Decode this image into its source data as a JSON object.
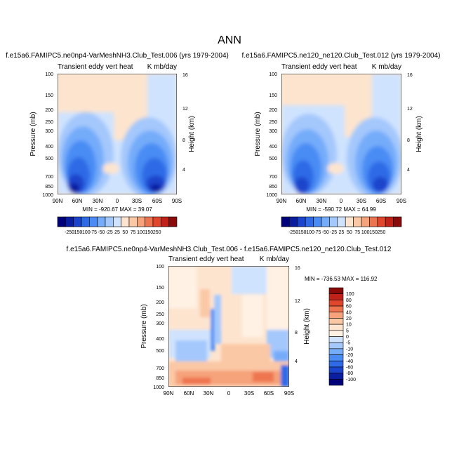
{
  "figure": {
    "title": "ANN"
  },
  "colors": {
    "scale_a": [
      "#00007a",
      "#0a1ea0",
      "#1a44cc",
      "#2e6ae6",
      "#4a8cf4",
      "#74acfa",
      "#a4c8fc",
      "#cfe3fe",
      "#fde4cf",
      "#fbc8a6",
      "#f6a27a",
      "#ee7450",
      "#e0462c",
      "#c0221a",
      "#8a0a0a"
    ],
    "scale_b": [
      "#00007a",
      "#0a1ea0",
      "#1a44cc",
      "#2e6ae6",
      "#4a8cf4",
      "#74acfa",
      "#a4c8fc",
      "#cfe3fe",
      "#fff1e4",
      "#fde4cf",
      "#fbc8a6",
      "#f6a27a",
      "#ee7450",
      "#e0462c",
      "#c0221a",
      "#8a0a0a"
    ]
  },
  "chart_data": [
    {
      "type": "heatmap",
      "title": "f.e15a6.FAMIPC5.ne0np4-VarMeshNH3.Club_Test.006 (yrs 1979-2004)",
      "subtitle_left": "Transient eddy vert heat",
      "subtitle_right": "K mb/day",
      "ylabel": "Pressure (mb)",
      "ylabel_right": "Height (km)",
      "x_ticks": [
        "90N",
        "60N",
        "30N",
        "0",
        "30S",
        "60S",
        "90S"
      ],
      "y_ticks": [
        "100",
        "150",
        "200",
        "250",
        "300",
        "400",
        "500",
        "700",
        "850",
        "1000"
      ],
      "y_right_ticks": [
        "16",
        "12",
        "8",
        "4"
      ],
      "min_max_text": "MIN = -920.67   MAX =  39.07",
      "colorbar_labels": [
        "-250",
        "-150",
        "-100",
        "-75",
        "-50",
        "-25",
        "25",
        "50",
        "75",
        "100",
        "150",
        "250"
      ]
    },
    {
      "type": "heatmap",
      "title": "f.e15a6.FAMIPC5.ne120_ne120.Club_Test.012 (yrs 1979-2004)",
      "subtitle_left": "Transient eddy vert heat",
      "subtitle_right": "K mb/day",
      "ylabel": "Pressure (mb)",
      "ylabel_right": "Height (km)",
      "x_ticks": [
        "90N",
        "60N",
        "30N",
        "0",
        "30S",
        "60S",
        "90S"
      ],
      "y_ticks": [
        "100",
        "150",
        "200",
        "250",
        "300",
        "400",
        "500",
        "700",
        "850",
        "1000"
      ],
      "y_right_ticks": [
        "16",
        "12",
        "8",
        "4"
      ],
      "min_max_text": "MIN = -590.72   MAX =  64.99",
      "colorbar_labels": [
        "-250",
        "-150",
        "-100",
        "-75",
        "-50",
        "-25",
        "25",
        "50",
        "75",
        "100",
        "150",
        "250"
      ]
    },
    {
      "type": "heatmap",
      "title": "f.e15a6.FAMIPC5.ne0np4-VarMeshNH3.Club_Test.006 - f.e15a6.FAMIPC5.ne120_ne120.Club_Test.012",
      "subtitle_left": "Transient eddy vert heat",
      "subtitle_right": "K mb/day",
      "ylabel": "Pressure (mb)",
      "ylabel_right": "Height (km)",
      "x_ticks": [
        "90N",
        "60N",
        "30N",
        "0",
        "30S",
        "60S",
        "90S"
      ],
      "y_ticks": [
        "100",
        "150",
        "200",
        "250",
        "300",
        "400",
        "500",
        "700",
        "850",
        "1000"
      ],
      "y_right_ticks": [
        "16",
        "12",
        "8",
        "4"
      ],
      "min_max_text": "MIN = -736.53   MAX = 116.92",
      "colorbar_labels": [
        "100",
        "80",
        "60",
        "40",
        "20",
        "10",
        "5",
        "0",
        "-5",
        "-10",
        "-20",
        "-40",
        "-60",
        "-80",
        "-100"
      ]
    }
  ]
}
